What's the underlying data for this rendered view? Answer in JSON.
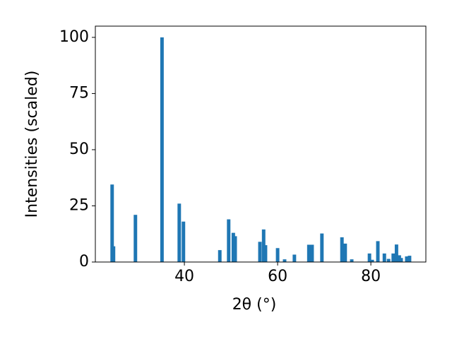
{
  "chart_data": {
    "type": "bar",
    "color": "#1f77b4",
    "xlabel": "2θ (°)",
    "ylabel": "Intensities (scaled)",
    "x": [
      24.5,
      24.8,
      29.5,
      35.2,
      38.9,
      39.8,
      47.6,
      49.5,
      50.5,
      50.9,
      56.2,
      57.0,
      57.4,
      60.0,
      61.5,
      63.6,
      66.7,
      67.4,
      69.5,
      73.8,
      74.5,
      75.9,
      79.7,
      80.3,
      81.5,
      82.9,
      83.8,
      84.8,
      85.5,
      86.1,
      86.5,
      87.7,
      88.3
    ],
    "values": [
      34.5,
      7,
      21,
      100,
      26,
      18,
      5.3,
      19,
      13,
      11.5,
      9,
      14.5,
      7.5,
      6.2,
      1.2,
      3.3,
      7.7,
      7.7,
      12.7,
      11,
      8.2,
      1.2,
      3.8,
      1,
      9.3,
      3.8,
      1.4,
      3.8,
      7.8,
      3,
      1.8,
      2.5,
      2.8
    ],
    "xlim": [
      20.9,
      91.8
    ],
    "xticks": [
      40,
      60,
      80
    ],
    "ylim": [
      0,
      105
    ],
    "yticks": [
      0,
      25,
      50,
      75,
      100
    ]
  }
}
